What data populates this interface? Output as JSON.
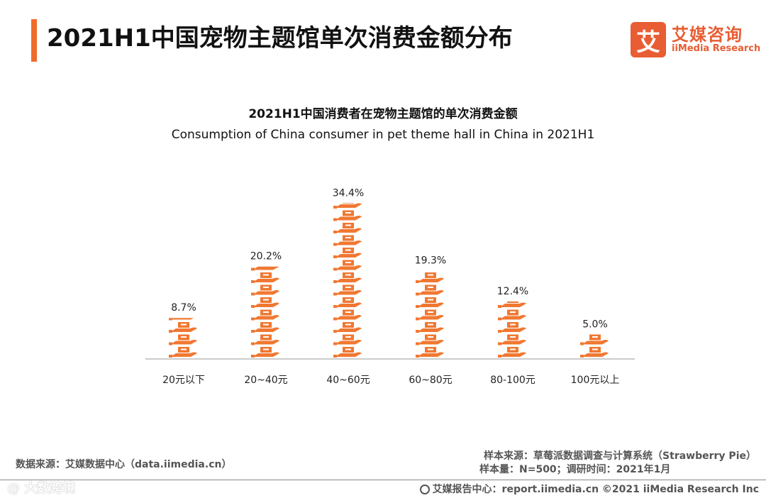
{
  "header": {
    "title": "2021H1中国宠物主题馆单次消费金额分布"
  },
  "logo": {
    "mark": "艾",
    "cn": "艾媒咨询",
    "en": "iiMedia Research"
  },
  "colors": {
    "accent": "#ef6c2a",
    "bar_icon": "#f07832",
    "axis": "#999999"
  },
  "chart_data": {
    "type": "bar",
    "title": "2021H1中国消费者在宠物主题馆的单次消费金额",
    "subtitle": "Consumption of China consumer in pet theme hall in China in 2021H1",
    "categories": [
      "20元以下",
      "20~40元",
      "40~60元",
      "60~80元",
      "80-100元",
      "100元以上"
    ],
    "values": [
      8.7,
      20.2,
      34.4,
      19.3,
      12.4,
      5.0
    ],
    "value_labels": [
      "8.7%",
      "20.2%",
      "34.4%",
      "19.3%",
      "12.4%",
      "5.0%"
    ],
    "unit": "%",
    "icon": "hand-holding-box-icon",
    "grid": false,
    "legend": "none"
  },
  "footer": {
    "source_left": "数据来源：艾媒数据中心（data.iimedia.cn）",
    "sample_source": "样本来源：草莓派数据调查与计算系统（Strawberry Pie）",
    "sample_size": "样本量：N=500；调研时间：2021年1月",
    "copyright": "艾媒报告中心：report.iimedia.cn  ©2021  iiMedia Research  Inc"
  },
  "watermark": {
    "text": "@ 大数跨境"
  }
}
